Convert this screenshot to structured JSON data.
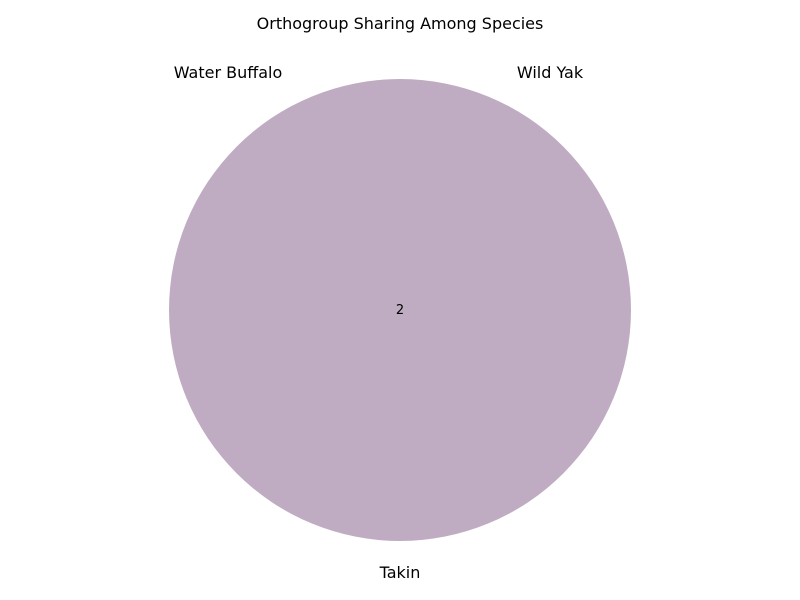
{
  "chart_data": {
    "type": "venn",
    "title": "Orthogroup Sharing Among Species",
    "sets": [
      {
        "name": "Water Buffalo",
        "label_position": "top-left"
      },
      {
        "name": "Wild Yak",
        "label_position": "top-right"
      },
      {
        "name": "Takin",
        "label_position": "bottom"
      }
    ],
    "regions": [
      {
        "sets": [
          "Water Buffalo",
          "Wild Yak",
          "Takin"
        ],
        "value": 2
      }
    ],
    "region_color": "#c0acc2"
  }
}
